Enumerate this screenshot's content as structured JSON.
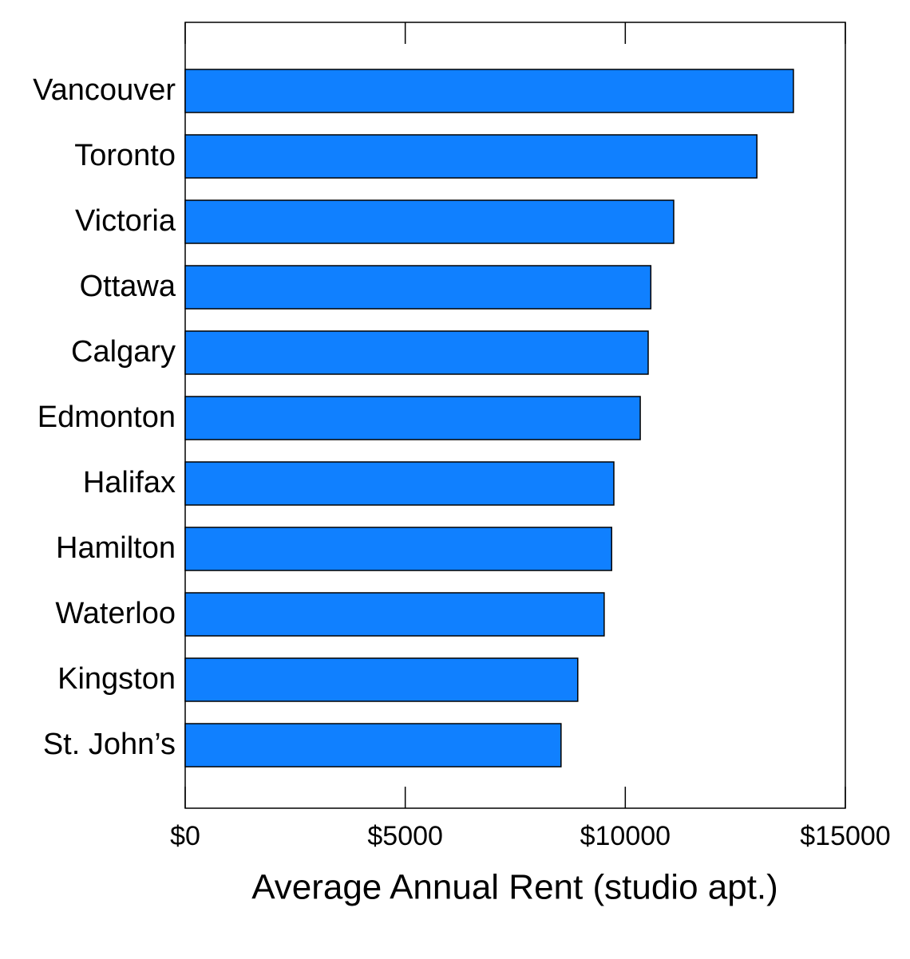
{
  "chart_data": {
    "type": "hbar",
    "x_label": "Average Annual Rent (studio apt.)",
    "categories": [
      "Vancouver",
      "Toronto",
      "Victoria",
      "Ottawa",
      "Calgary",
      "Edmonton",
      "Halifax",
      "Hamilton",
      "Waterloo",
      "Kingston",
      "St. John’s"
    ],
    "values": [
      13820,
      12990,
      11100,
      10580,
      10520,
      10340,
      9740,
      9690,
      9520,
      8920,
      8540
    ],
    "color": "#1080ff",
    "xlim": [
      0,
      15000
    ],
    "xticks": [
      {
        "value": 0,
        "label": "$0"
      },
      {
        "value": 5000,
        "label": "$5000"
      },
      {
        "value": 10000,
        "label": "$10000"
      },
      {
        "value": 15000,
        "label": "$15000"
      }
    ],
    "grid": false
  }
}
